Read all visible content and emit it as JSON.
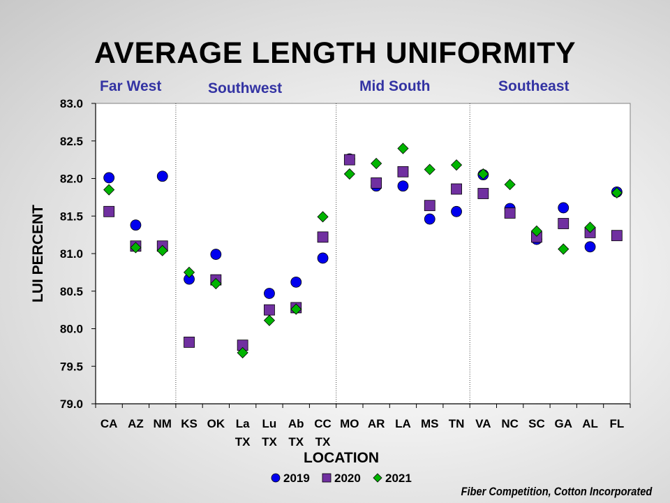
{
  "chart_data": {
    "type": "scatter",
    "title": "AVERAGE LENGTH UNIFORMITY",
    "xlabel": "LOCATION",
    "ylabel": "LUI PERCENT",
    "ylim": [
      79.0,
      83.0
    ],
    "ytick_step": 0.5,
    "grid": false,
    "legend_position": "bottom-center",
    "categories": [
      "CA",
      "AZ",
      "NM",
      "KS",
      "OK",
      "La\nTX",
      "Lu\nTX",
      "Ab\nTX",
      "CC\nTX",
      "MO",
      "AR",
      "LA",
      "MS",
      "TN",
      "VA",
      "NC",
      "SC",
      "GA",
      "AL",
      "FL"
    ],
    "regions": [
      {
        "name": "Far West",
        "start": 0,
        "end": 2
      },
      {
        "name": "Southwest",
        "start": 3,
        "end": 8
      },
      {
        "name": "Mid South",
        "start": 9,
        "end": 13
      },
      {
        "name": "Southeast",
        "start": 14,
        "end": 19
      }
    ],
    "series": [
      {
        "name": "2019",
        "marker": "circle",
        "color": "#0000ee",
        "values": [
          82.01,
          81.38,
          82.03,
          80.66,
          80.99,
          null,
          80.47,
          80.62,
          80.94,
          82.26,
          81.9,
          81.9,
          81.46,
          81.56,
          82.05,
          81.6,
          81.19,
          81.61,
          81.09,
          81.82
        ]
      },
      {
        "name": "2020",
        "marker": "square",
        "color": "#7030a0",
        "values": [
          81.56,
          81.1,
          81.1,
          79.82,
          80.65,
          79.78,
          80.25,
          80.28,
          81.22,
          82.25,
          81.94,
          82.09,
          81.64,
          81.86,
          81.8,
          81.54,
          81.22,
          81.4,
          81.28,
          81.24
        ]
      },
      {
        "name": "2021",
        "marker": "diamond",
        "color": "#00b400",
        "values": [
          81.85,
          81.08,
          81.04,
          80.75,
          80.6,
          79.68,
          80.11,
          80.26,
          81.49,
          82.06,
          82.2,
          82.4,
          82.12,
          82.18,
          82.06,
          81.92,
          81.3,
          81.06,
          81.35,
          81.81
        ]
      }
    ]
  },
  "footer": {
    "credit": "Fiber Competition, Cotton Incorporated"
  }
}
